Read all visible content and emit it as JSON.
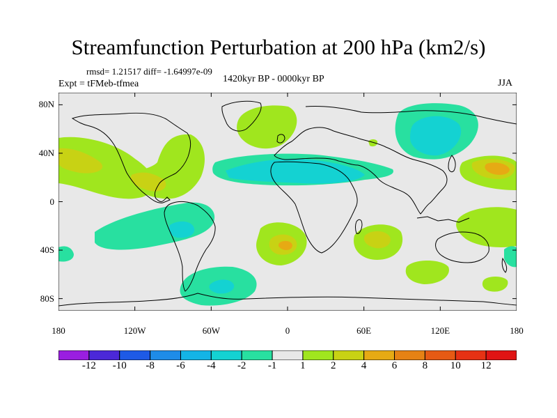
{
  "title": "Streamfunction Perturbation at 200 hPa (km2/s)",
  "stats": "rmsd= 1.21517 diff= -1.64997e-09",
  "experiment": "Expt = tFMeb-tfmea",
  "period": "1420kyr BP - 0000kyr BP",
  "season": "JJA",
  "map": {
    "lat_labels": [
      "80N",
      "40N",
      "0",
      "40S",
      "80S"
    ],
    "lat_values": [
      80,
      40,
      0,
      -40,
      -80
    ],
    "lon_labels": [
      "180",
      "120W",
      "60W",
      "0",
      "60E",
      "120E",
      "180"
    ],
    "lon_values": [
      -180,
      -120,
      -60,
      0,
      60,
      120,
      180
    ],
    "lat_range": [
      -90,
      90
    ],
    "lon_range": [
      -180,
      180
    ]
  },
  "colorbar": {
    "labels": [
      "-12",
      "-10",
      "-8",
      "-6",
      "-4",
      "-2",
      "-1",
      "1",
      "2",
      "4",
      "6",
      "8",
      "10",
      "12"
    ],
    "colors": [
      "#9a1ee0",
      "#4b28d8",
      "#1e5ae6",
      "#1e8ce8",
      "#14b4e6",
      "#14d2d2",
      "#28e0a0",
      "#e8e8e8",
      "#a0e61e",
      "#c8d214",
      "#e6aa14",
      "#e68214",
      "#e65a14",
      "#e63214",
      "#e01414"
    ]
  },
  "chart_data": {
    "type": "contour_map",
    "variable": "200 hPa streamfunction perturbation",
    "units": "km2/s",
    "levels": [
      -12,
      -10,
      -8,
      -6,
      -4,
      -2,
      -1,
      1,
      2,
      4,
      6,
      8,
      10,
      12
    ],
    "features": [
      {
        "region": "Mongolia / Central Asia",
        "lon": 100,
        "lat": 55,
        "value": -4
      },
      {
        "region": "Mediterranean / Sahara",
        "lon": 5,
        "lat": 30,
        "value": -3
      },
      {
        "region": "South America",
        "lon": -85,
        "lat": -15,
        "value": -3
      },
      {
        "region": "Southern Ocean south of S. America",
        "lon": -50,
        "lat": -65,
        "value": -3
      },
      {
        "region": "Southeast Pacific",
        "lon": -140,
        "lat": -20,
        "value": -1.5
      },
      {
        "region": "North Pacific (west)",
        "lon": 165,
        "lat": 30,
        "value": 5
      },
      {
        "region": "North America",
        "lon": -100,
        "lat": 25,
        "value": 4
      },
      {
        "region": "Northeast Pacific",
        "lon": -170,
        "lat": 30,
        "value": 3
      },
      {
        "region": "South Atlantic",
        "lon": 0,
        "lat": -40,
        "value": 4
      },
      {
        "region": "Southwest Indian Ocean",
        "lon": 60,
        "lat": -25,
        "value": 4
      },
      {
        "region": "Southeast Indian Ocean",
        "lon": 105,
        "lat": -60,
        "value": 1.5
      },
      {
        "region": "North Atlantic",
        "lon": -30,
        "lat": 60,
        "value": 1.5
      },
      {
        "region": "Western Pacific (tropics)",
        "lon": 140,
        "lat": -10,
        "value": 1.5
      }
    ]
  }
}
